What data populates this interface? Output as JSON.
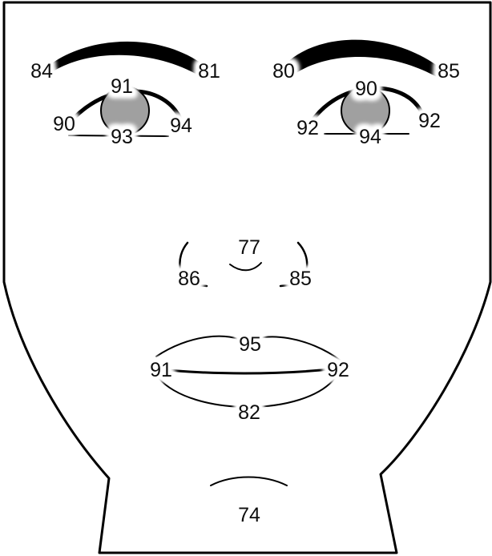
{
  "labels": {
    "left_brow_outer": "84",
    "left_brow_inner": "81",
    "right_brow_inner": "80",
    "right_brow_outer": "85",
    "left_eye_top": "91",
    "left_eye_outer": "90",
    "left_eye_bottom": "93",
    "left_eye_inner": "94",
    "right_eye_top": "90",
    "right_eye_inner": "92",
    "right_eye_bottom": "94",
    "right_eye_outer": "92",
    "nose_tip": "77",
    "nose_left": "86",
    "nose_right": "85",
    "upper_lip": "95",
    "mouth_left": "91",
    "mouth_right": "92",
    "lower_lip": "82",
    "chin": "74"
  },
  "colors": {
    "line": "#000000",
    "iris": "#a0a0a0",
    "background": "#ffffff"
  }
}
